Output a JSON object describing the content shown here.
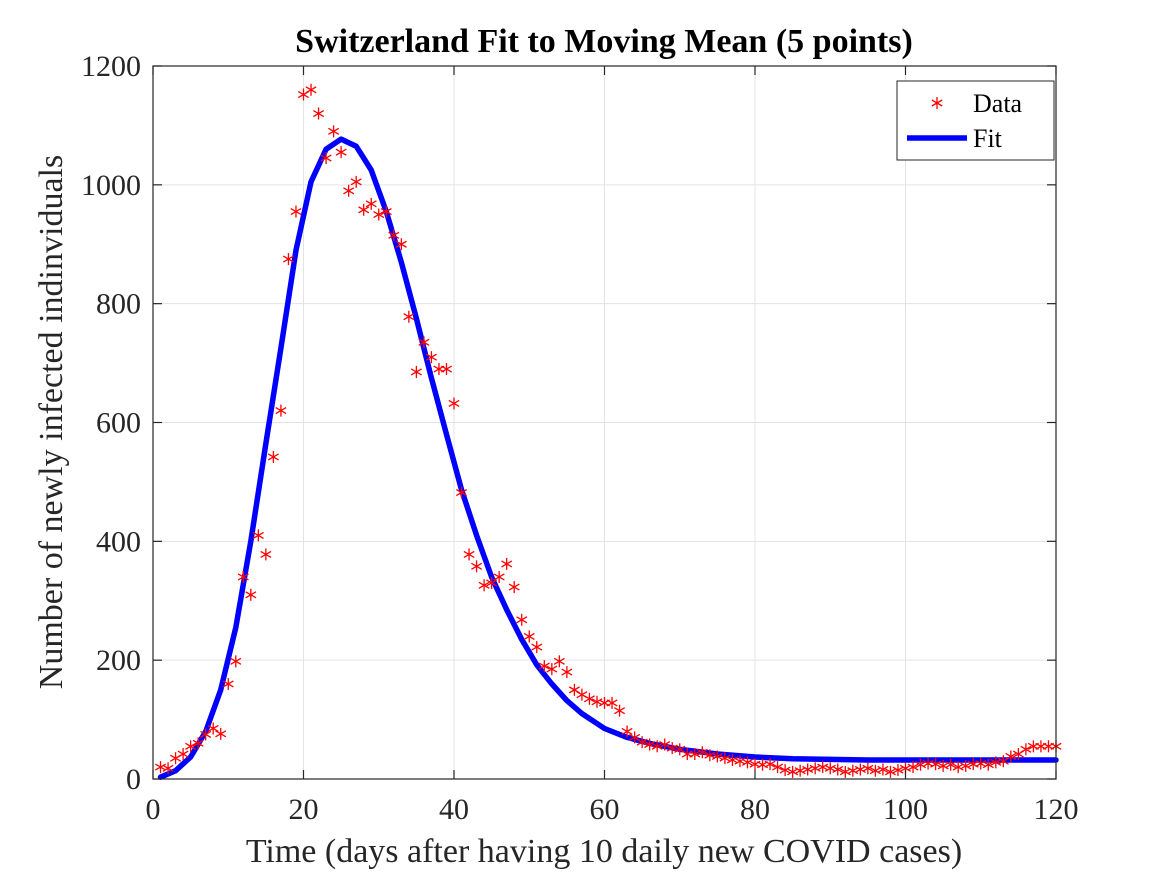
{
  "chart_data": {
    "type": "scatter",
    "title": "Switzerland Fit to Moving Mean (5 points)",
    "xlabel": "Time (days after having 10 daily new COVID cases)",
    "ylabel": "Number of newly infected indinviduals",
    "xlim": [
      0,
      120
    ],
    "ylim": [
      0,
      1200
    ],
    "xticks": [
      0,
      20,
      40,
      60,
      80,
      100,
      120
    ],
    "yticks": [
      0,
      200,
      400,
      600,
      800,
      1000,
      1200
    ],
    "grid": true,
    "legend_position": "top-right",
    "series": [
      {
        "name": "Data",
        "kind": "marker",
        "marker": "asterisk",
        "color": "#ff0000",
        "points": [
          [
            1,
            20
          ],
          [
            2,
            18
          ],
          [
            3,
            35
          ],
          [
            4,
            42
          ],
          [
            5,
            55
          ],
          [
            6,
            60
          ],
          [
            7,
            75
          ],
          [
            8,
            85
          ],
          [
            9,
            76
          ],
          [
            10,
            160
          ],
          [
            11,
            198
          ],
          [
            12,
            340
          ],
          [
            13,
            310
          ],
          [
            14,
            410
          ],
          [
            15,
            378
          ],
          [
            16,
            542
          ],
          [
            17,
            620
          ],
          [
            18,
            875
          ],
          [
            19,
            955
          ],
          [
            20,
            1152
          ],
          [
            21,
            1160
          ],
          [
            22,
            1120
          ],
          [
            23,
            1045
          ],
          [
            24,
            1090
          ],
          [
            25,
            1055
          ],
          [
            26,
            990
          ],
          [
            27,
            1005
          ],
          [
            28,
            958
          ],
          [
            29,
            968
          ],
          [
            30,
            950
          ],
          [
            31,
            955
          ],
          [
            32,
            915
          ],
          [
            33,
            900
          ],
          [
            34,
            778
          ],
          [
            35,
            685
          ],
          [
            36,
            735
          ],
          [
            37,
            710
          ],
          [
            38,
            690
          ],
          [
            39,
            690
          ],
          [
            40,
            632
          ],
          [
            41,
            482
          ],
          [
            42,
            378
          ],
          [
            43,
            358
          ],
          [
            44,
            326
          ],
          [
            45,
            330
          ],
          [
            46,
            340
          ],
          [
            47,
            362
          ],
          [
            48,
            323
          ],
          [
            49,
            268
          ],
          [
            50,
            240
          ],
          [
            51,
            222
          ],
          [
            52,
            190
          ],
          [
            53,
            185
          ],
          [
            54,
            198
          ],
          [
            55,
            180
          ],
          [
            56,
            150
          ],
          [
            57,
            142
          ],
          [
            58,
            135
          ],
          [
            59,
            130
          ],
          [
            60,
            128
          ],
          [
            61,
            128
          ],
          [
            62,
            115
          ],
          [
            63,
            80
          ],
          [
            64,
            70
          ],
          [
            65,
            62
          ],
          [
            66,
            58
          ],
          [
            67,
            55
          ],
          [
            68,
            58
          ],
          [
            69,
            52
          ],
          [
            70,
            50
          ],
          [
            71,
            42
          ],
          [
            72,
            42
          ],
          [
            73,
            45
          ],
          [
            74,
            40
          ],
          [
            75,
            38
          ],
          [
            76,
            35
          ],
          [
            77,
            32
          ],
          [
            78,
            30
          ],
          [
            79,
            28
          ],
          [
            80,
            25
          ],
          [
            81,
            24
          ],
          [
            82,
            25
          ],
          [
            83,
            20
          ],
          [
            84,
            15
          ],
          [
            85,
            12
          ],
          [
            86,
            14
          ],
          [
            87,
            16
          ],
          [
            88,
            18
          ],
          [
            89,
            20
          ],
          [
            90,
            18
          ],
          [
            91,
            16
          ],
          [
            92,
            12
          ],
          [
            93,
            14
          ],
          [
            94,
            16
          ],
          [
            95,
            18
          ],
          [
            96,
            14
          ],
          [
            97,
            16
          ],
          [
            98,
            12
          ],
          [
            99,
            15
          ],
          [
            100,
            18
          ],
          [
            101,
            20
          ],
          [
            102,
            24
          ],
          [
            103,
            26
          ],
          [
            104,
            25
          ],
          [
            105,
            22
          ],
          [
            106,
            24
          ],
          [
            107,
            20
          ],
          [
            108,
            22
          ],
          [
            109,
            25
          ],
          [
            110,
            26
          ],
          [
            111,
            24
          ],
          [
            112,
            28
          ],
          [
            113,
            30
          ],
          [
            114,
            38
          ],
          [
            115,
            42
          ],
          [
            116,
            50
          ],
          [
            117,
            55
          ],
          [
            118,
            55
          ],
          [
            119,
            55
          ],
          [
            120,
            55
          ]
        ]
      },
      {
        "name": "Fit",
        "kind": "line",
        "color": "#0000ff",
        "points": [
          [
            1,
            3
          ],
          [
            3,
            14
          ],
          [
            5,
            37
          ],
          [
            7,
            80
          ],
          [
            9,
            150
          ],
          [
            11,
            255
          ],
          [
            13,
            400
          ],
          [
            15,
            565
          ],
          [
            17,
            725
          ],
          [
            19,
            890
          ],
          [
            21,
            1005
          ],
          [
            23,
            1060
          ],
          [
            25,
            1077
          ],
          [
            27,
            1065
          ],
          [
            29,
            1025
          ],
          [
            31,
            955
          ],
          [
            33,
            870
          ],
          [
            35,
            775
          ],
          [
            37,
            675
          ],
          [
            39,
            580
          ],
          [
            41,
            487
          ],
          [
            43,
            410
          ],
          [
            45,
            340
          ],
          [
            47,
            285
          ],
          [
            49,
            235
          ],
          [
            51,
            192
          ],
          [
            53,
            160
          ],
          [
            55,
            132
          ],
          [
            57,
            110
          ],
          [
            60,
            85
          ],
          [
            63,
            70
          ],
          [
            66,
            60
          ],
          [
            70,
            50
          ],
          [
            75,
            42
          ],
          [
            80,
            37
          ],
          [
            85,
            34
          ],
          [
            90,
            33
          ],
          [
            95,
            32
          ],
          [
            100,
            32
          ],
          [
            105,
            32
          ],
          [
            110,
            32
          ],
          [
            115,
            32
          ],
          [
            120,
            32
          ]
        ]
      }
    ]
  }
}
